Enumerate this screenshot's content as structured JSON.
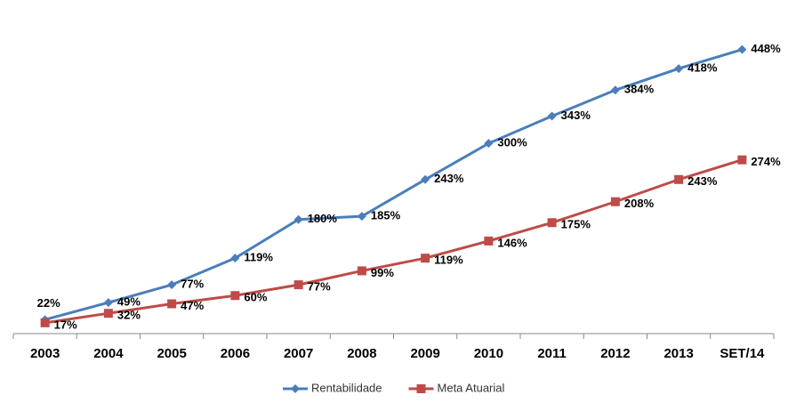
{
  "chart_data": {
    "type": "line",
    "categories": [
      "2003",
      "2004",
      "2005",
      "2006",
      "2007",
      "2008",
      "2009",
      "2010",
      "2011",
      "2012",
      "2013",
      "SET/14"
    ],
    "ylim": [
      0,
      470
    ],
    "series": [
      {
        "name": "Rentabilidade",
        "color": "#4a7ebb",
        "marker": "diamond",
        "values": [
          22,
          49,
          77,
          119,
          180,
          185,
          243,
          300,
          343,
          384,
          418,
          448
        ],
        "value_labels": [
          "22%",
          "49%",
          "77%",
          "119%",
          "180%",
          "185%",
          "243%",
          "300%",
          "343%",
          "384%",
          "418%",
          "448%"
        ]
      },
      {
        "name": "Meta Atuarial",
        "color": "#be4b48",
        "marker": "square",
        "values": [
          17,
          32,
          47,
          60,
          77,
          99,
          119,
          146,
          175,
          208,
          243,
          274
        ],
        "value_labels": [
          "17%",
          "32%",
          "47%",
          "60%",
          "77%",
          "99%",
          "119%",
          "146%",
          "175%",
          "208%",
          "243%",
          "274%"
        ]
      }
    ],
    "legend": "bottom"
  }
}
